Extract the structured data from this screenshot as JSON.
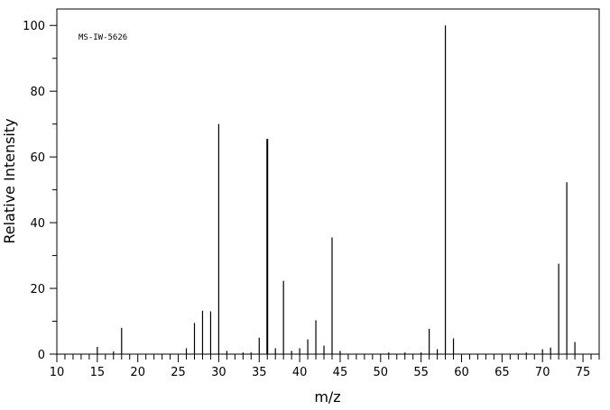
{
  "chart_data": {
    "type": "bar",
    "annotation": "MS-IW-5626",
    "xlabel": "m/z",
    "ylabel": "Relative Intensity",
    "xlim": [
      10,
      77
    ],
    "ylim": [
      0,
      105
    ],
    "x_ticks": [
      10,
      15,
      20,
      25,
      30,
      35,
      40,
      45,
      50,
      55,
      60,
      65,
      70,
      75
    ],
    "y_ticks": [
      0,
      20,
      40,
      60,
      80,
      100
    ],
    "grid": false,
    "peaks": [
      {
        "mz": 15,
        "intensity": 2.2
      },
      {
        "mz": 17,
        "intensity": 0.8
      },
      {
        "mz": 18,
        "intensity": 8.0
      },
      {
        "mz": 26,
        "intensity": 1.8
      },
      {
        "mz": 27,
        "intensity": 9.5
      },
      {
        "mz": 28,
        "intensity": 13.2
      },
      {
        "mz": 29,
        "intensity": 13.0
      },
      {
        "mz": 30,
        "intensity": 70.0
      },
      {
        "mz": 31,
        "intensity": 1.0
      },
      {
        "mz": 33,
        "intensity": 0.5
      },
      {
        "mz": 34,
        "intensity": 0.5
      },
      {
        "mz": 35,
        "intensity": 5.0
      },
      {
        "mz": 36,
        "intensity": 65.5
      },
      {
        "mz": 37,
        "intensity": 1.8
      },
      {
        "mz": 38,
        "intensity": 22.3
      },
      {
        "mz": 39,
        "intensity": 1.0
      },
      {
        "mz": 40,
        "intensity": 1.8
      },
      {
        "mz": 41,
        "intensity": 4.5
      },
      {
        "mz": 42,
        "intensity": 10.3
      },
      {
        "mz": 43,
        "intensity": 2.6
      },
      {
        "mz": 44,
        "intensity": 35.5
      },
      {
        "mz": 45,
        "intensity": 1.0
      },
      {
        "mz": 51,
        "intensity": 0.5
      },
      {
        "mz": 53,
        "intensity": 0.5
      },
      {
        "mz": 55,
        "intensity": 0.5
      },
      {
        "mz": 56,
        "intensity": 7.7
      },
      {
        "mz": 57,
        "intensity": 1.5
      },
      {
        "mz": 58,
        "intensity": 100.0
      },
      {
        "mz": 59,
        "intensity": 4.8
      },
      {
        "mz": 68,
        "intensity": 0.5
      },
      {
        "mz": 70,
        "intensity": 1.5
      },
      {
        "mz": 71,
        "intensity": 2.0
      },
      {
        "mz": 72,
        "intensity": 27.5
      },
      {
        "mz": 73,
        "intensity": 52.3
      },
      {
        "mz": 74,
        "intensity": 3.7
      }
    ]
  }
}
